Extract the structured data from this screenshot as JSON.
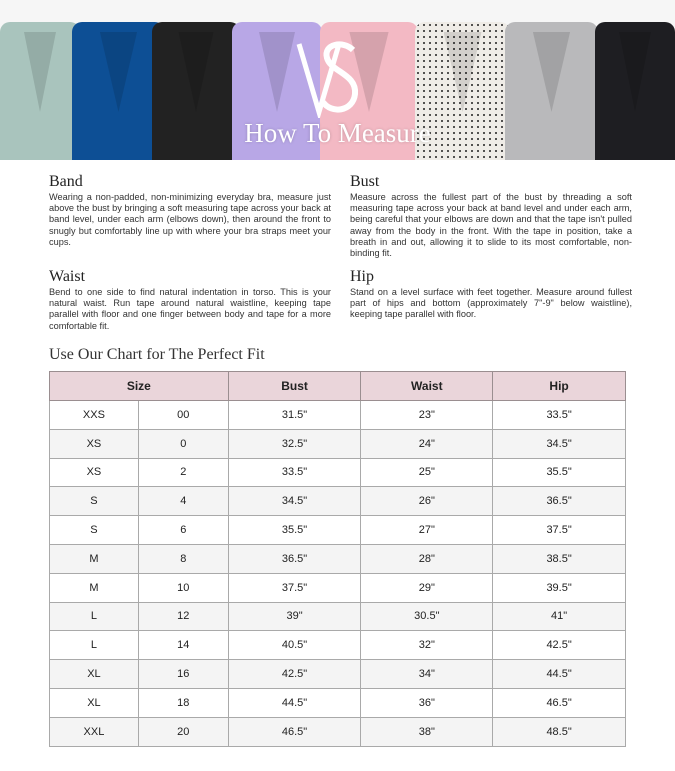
{
  "banner": {
    "title": "How To Measure",
    "logo_text": "VS",
    "colors": [
      "#a9c4bd",
      "#0d4f95",
      "#222222",
      "#b8a7e6",
      "#f3b9c4",
      "#efece7",
      "#b9b9bb",
      "#1e1e22"
    ]
  },
  "sections": [
    {
      "title": "Band",
      "text": "Wearing a non-padded, non-minimizing everyday bra, measure just above the bust by bringing a soft measuring tape across your back at band level, under each arm (elbows down), then around the front to snugly but comfortably line up with where your bra straps meet your cups."
    },
    {
      "title": "Bust",
      "text": "Measure across the fullest part of the bust by threading a soft measuring tape across your back at band level and under each arm, being careful that your elbows are down and that the tape isn't pulled away from the body in the front. With the tape in position, take a breath in and out, allowing it to slide to its most comfortable, non-binding fit."
    },
    {
      "title": "Waist",
      "text": "Bend to one side to find natural indentation in torso. This is your natural waist. Run tape around natural waistline, keeping tape parallel with floor and one finger between body and tape for a more comfortable fit."
    },
    {
      "title": "Hip",
      "text": "Stand on a level surface with feet together. Measure around fullest part of hips and bottom (approximately 7\"-9\" below waistline), keeping tape parallel with floor."
    }
  ],
  "chart": {
    "title": "Use Our Chart for The Perfect Fit",
    "headers": [
      "Size",
      "Bust",
      "Waist",
      "Hip"
    ],
    "rows": [
      [
        "XXS",
        "00",
        "31.5\"",
        "23\"",
        "33.5\""
      ],
      [
        "XS",
        "0",
        "32.5\"",
        "24\"",
        "34.5\""
      ],
      [
        "XS",
        "2",
        "33.5\"",
        "25\"",
        "35.5\""
      ],
      [
        "S",
        "4",
        "34.5\"",
        "26\"",
        "36.5\""
      ],
      [
        "S",
        "6",
        "35.5\"",
        "27\"",
        "37.5\""
      ],
      [
        "M",
        "8",
        "36.5\"",
        "28\"",
        "38.5\""
      ],
      [
        "M",
        "10",
        "37.5\"",
        "29\"",
        "39.5\""
      ],
      [
        "L",
        "12",
        "39\"",
        "30.5\"",
        "41\""
      ],
      [
        "L",
        "14",
        "40.5\"",
        "32\"",
        "42.5\""
      ],
      [
        "XL",
        "16",
        "42.5\"",
        "34\"",
        "44.5\""
      ],
      [
        "XL",
        "18",
        "44.5\"",
        "36\"",
        "46.5\""
      ],
      [
        "XXL",
        "20",
        "46.5\"",
        "38\"",
        "48.5\""
      ]
    ]
  }
}
